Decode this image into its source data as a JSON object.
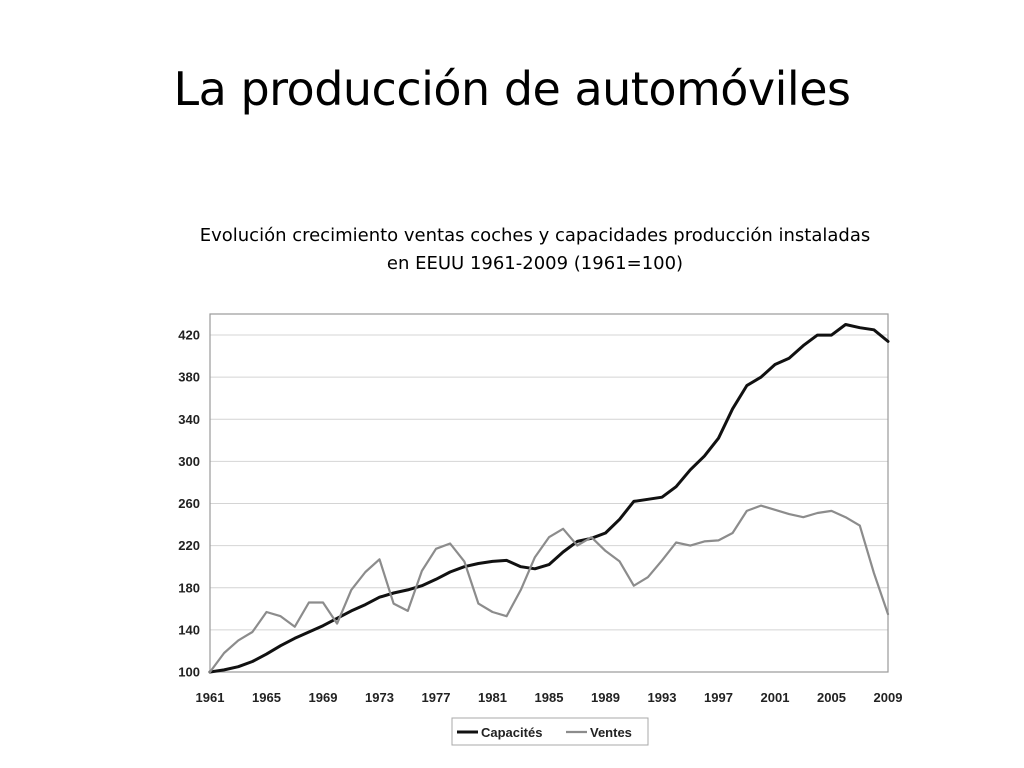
{
  "slide": {
    "title": "La producción de automóviles",
    "caption_line1": "Evolución crecimiento ventas coches y capacidades producción instaladas",
    "caption_line2": "en EEUU 1961-2009 (1961=100)"
  },
  "chart_data": {
    "type": "line",
    "title": "",
    "xlabel": "",
    "ylabel": "",
    "xlim": [
      1961,
      2009
    ],
    "ylim": [
      100,
      440
    ],
    "x_ticks": [
      1961,
      1965,
      1969,
      1973,
      1977,
      1981,
      1985,
      1989,
      1993,
      1997,
      2001,
      2005,
      2009
    ],
    "y_ticks": [
      100,
      140,
      180,
      220,
      260,
      300,
      340,
      380,
      420
    ],
    "grid": "horizontal",
    "legend_position": "bottom-center",
    "x": [
      1961,
      1962,
      1963,
      1964,
      1965,
      1966,
      1967,
      1968,
      1969,
      1970,
      1971,
      1972,
      1973,
      1974,
      1975,
      1976,
      1977,
      1978,
      1979,
      1980,
      1981,
      1982,
      1983,
      1984,
      1985,
      1986,
      1987,
      1988,
      1989,
      1990,
      1991,
      1992,
      1993,
      1994,
      1995,
      1996,
      1997,
      1998,
      1999,
      2000,
      2001,
      2002,
      2003,
      2004,
      2005,
      2006,
      2007,
      2008,
      2009
    ],
    "series": [
      {
        "name": "Capacités",
        "color": "#111111",
        "values": [
          100,
          102,
          105,
          110,
          117,
          125,
          132,
          138,
          144,
          151,
          158,
          164,
          171,
          175,
          178,
          182,
          188,
          195,
          200,
          203,
          205,
          206,
          200,
          198,
          202,
          214,
          224,
          227,
          232,
          245,
          262,
          264,
          266,
          276,
          292,
          305,
          322,
          350,
          372,
          380,
          392,
          398,
          410,
          420,
          420,
          430,
          427,
          425,
          414
        ]
      },
      {
        "name": "Ventes",
        "color": "#8c8c8c",
        "values": [
          100,
          118,
          130,
          138,
          157,
          153,
          143,
          166,
          166,
          146,
          178,
          195,
          207,
          165,
          158,
          196,
          217,
          222,
          205,
          165,
          157,
          153,
          178,
          209,
          228,
          236,
          220,
          228,
          215,
          205,
          182,
          190,
          206,
          223,
          220,
          224,
          225,
          232,
          253,
          258,
          254,
          250,
          247,
          251,
          253,
          247,
          239,
          194,
          155
        ]
      }
    ]
  }
}
